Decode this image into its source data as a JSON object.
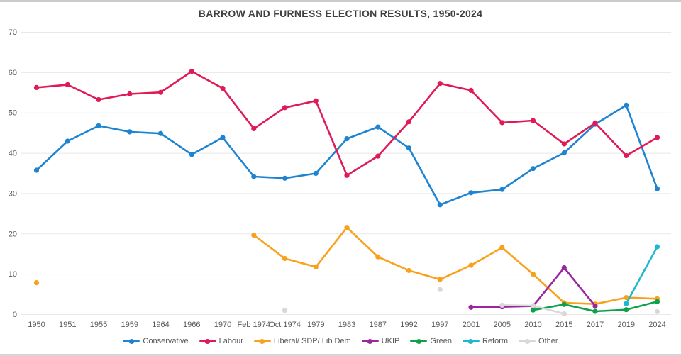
{
  "page_title": "BARROW AND FURNESS ELECTION RESULTS, 1950-2024",
  "colors": {
    "title_text": "#404040",
    "axis_text": "#595959",
    "gridline": "#e8e8e8",
    "frame_edge": "#cccccc",
    "background": "#ffffff"
  },
  "chart_data": {
    "type": "line",
    "title": "BARROW AND FURNESS ELECTION RESULTS, 1950-2024",
    "xlabel": "",
    "ylabel": "",
    "ylim": [
      0,
      70
    ],
    "yticks": [
      0,
      10,
      20,
      30,
      40,
      50,
      60,
      70
    ],
    "grid": true,
    "legend_position": "bottom",
    "categories": [
      "1950",
      "1951",
      "1955",
      "1959",
      "1964",
      "1966",
      "1970",
      "Feb 1974",
      "Oct 1974",
      "1979",
      "1983",
      "1987",
      "1992",
      "1997",
      "2001",
      "2005",
      "2010",
      "2015",
      "2017",
      "2019",
      "2024"
    ],
    "series": [
      {
        "name": "Conservative",
        "color": "#1e84d1",
        "values": [
          35.8,
          43.0,
          46.8,
          45.3,
          44.9,
          39.7,
          43.9,
          34.2,
          33.8,
          35.0,
          43.6,
          46.5,
          41.3,
          27.2,
          30.2,
          31.0,
          36.2,
          40.1,
          47.2,
          51.9,
          31.2
        ]
      },
      {
        "name": "Labour",
        "color": "#e01a56",
        "values": [
          56.3,
          57.0,
          53.3,
          54.7,
          55.1,
          60.3,
          56.1,
          46.1,
          51.3,
          53.0,
          34.5,
          39.3,
          47.8,
          57.3,
          55.6,
          47.6,
          48.1,
          42.3,
          47.5,
          39.4,
          43.9
        ]
      },
      {
        "name": "Liberal/ SDP/ Lib Dem",
        "color": "#f9a11b",
        "values": [
          7.9,
          null,
          null,
          null,
          null,
          null,
          null,
          19.7,
          13.9,
          11.8,
          21.6,
          14.3,
          10.9,
          8.7,
          12.2,
          16.6,
          10.0,
          2.9,
          2.6,
          4.2,
          3.9
        ]
      },
      {
        "name": "UKIP",
        "color": "#9a27a0",
        "values": [
          null,
          null,
          null,
          null,
          null,
          null,
          null,
          null,
          null,
          null,
          null,
          null,
          null,
          null,
          1.8,
          1.9,
          2.1,
          11.6,
          2.1,
          null,
          null
        ]
      },
      {
        "name": "Green",
        "color": "#0ea14b",
        "values": [
          null,
          null,
          null,
          null,
          null,
          null,
          null,
          null,
          null,
          null,
          null,
          null,
          null,
          null,
          null,
          null,
          1.1,
          2.5,
          0.8,
          1.2,
          3.2
        ]
      },
      {
        "name": "Reform",
        "color": "#1cb8ce",
        "values": [
          null,
          null,
          null,
          null,
          null,
          null,
          null,
          null,
          null,
          null,
          null,
          null,
          null,
          null,
          null,
          null,
          null,
          null,
          null,
          2.7,
          16.8
        ]
      },
      {
        "name": "Other",
        "color": "#d8d8d8",
        "values": [
          null,
          null,
          null,
          null,
          null,
          null,
          null,
          null,
          1.0,
          null,
          null,
          null,
          null,
          6.2,
          null,
          2.3,
          2.2,
          0.2,
          null,
          null,
          0.7
        ]
      }
    ]
  }
}
